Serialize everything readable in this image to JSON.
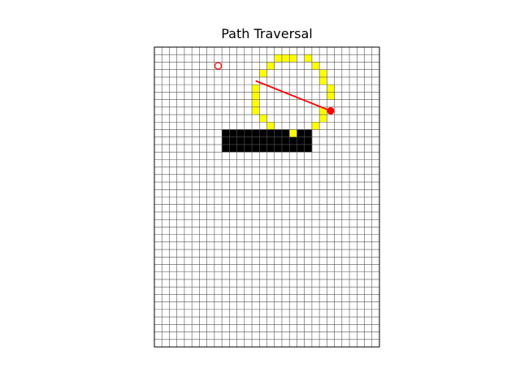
{
  "title": "Path Traversal",
  "grid": {
    "cols": 30,
    "rows": 40,
    "cell_color": "#ffffff",
    "line_color": "#555555",
    "border_color": "#000000"
  },
  "colors": {
    "visited": "#ffff00",
    "obstacle": "#000000",
    "path": "#ff0000",
    "start": "#ff0000",
    "goal": "#ff0000"
  },
  "obstacle_cells": [
    [
      9,
      11
    ],
    [
      10,
      11
    ],
    [
      11,
      11
    ],
    [
      12,
      11
    ],
    [
      13,
      11
    ],
    [
      14,
      11
    ],
    [
      15,
      11
    ],
    [
      16,
      11
    ],
    [
      17,
      11
    ],
    [
      19,
      11
    ],
    [
      20,
      11
    ],
    [
      9,
      12
    ],
    [
      10,
      12
    ],
    [
      11,
      12
    ],
    [
      12,
      12
    ],
    [
      13,
      12
    ],
    [
      14,
      12
    ],
    [
      15,
      12
    ],
    [
      16,
      12
    ],
    [
      17,
      12
    ],
    [
      18,
      12
    ],
    [
      19,
      12
    ],
    [
      20,
      12
    ],
    [
      9,
      13
    ],
    [
      10,
      13
    ],
    [
      11,
      13
    ],
    [
      12,
      13
    ],
    [
      13,
      13
    ],
    [
      14,
      13
    ],
    [
      15,
      13
    ],
    [
      16,
      13
    ],
    [
      17,
      13
    ],
    [
      18,
      13
    ],
    [
      19,
      13
    ],
    [
      20,
      13
    ]
  ],
  "visited_cells": [
    [
      16,
      1
    ],
    [
      17,
      1
    ],
    [
      18,
      1
    ],
    [
      20,
      1
    ],
    [
      15,
      2
    ],
    [
      21,
      2
    ],
    [
      14,
      3
    ],
    [
      22,
      3
    ],
    [
      22,
      4
    ],
    [
      13,
      5
    ],
    [
      23,
      5
    ],
    [
      13,
      6
    ],
    [
      23,
      6
    ],
    [
      13,
      7
    ],
    [
      13,
      8
    ],
    [
      22,
      8
    ],
    [
      14,
      9
    ],
    [
      22,
      9
    ],
    [
      15,
      10
    ],
    [
      21,
      10
    ],
    [
      16,
      11
    ],
    [
      17,
      11
    ],
    [
      18,
      11
    ],
    [
      20,
      11
    ]
  ],
  "start": {
    "col": 8,
    "row": 2,
    "marker": "hollow-circle"
  },
  "goal": {
    "col": 23,
    "row": 8,
    "marker": "filled-circle"
  },
  "path": [
    {
      "col": 13,
      "row": 4
    },
    {
      "col": 23,
      "row": 8
    }
  ]
}
